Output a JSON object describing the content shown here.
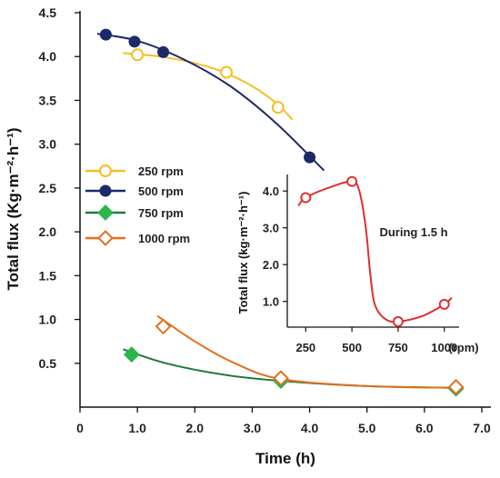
{
  "chart_data": [
    {
      "type": "line",
      "title": "",
      "xlabel": "Time (h)",
      "ylabel": "Total flux (Kg·m⁻²·h⁻¹)",
      "xlim": [
        0,
        7.0
      ],
      "ylim": [
        0,
        4.5
      ],
      "x_ticks": [
        "0",
        "1.0",
        "2.0",
        "3.0",
        "4.0",
        "5.0",
        "6.0",
        "7.0"
      ],
      "y_ticks": [
        "0.5",
        "1.0",
        "1.5",
        "2.0",
        "2.5",
        "3.0",
        "3.5",
        "4.0",
        "4.5"
      ],
      "grid": false,
      "legend_position": "left-middle",
      "series": [
        {
          "name": "250 rpm",
          "color": "#f4c020",
          "marker": "open-circle",
          "points": [
            [
              1.0,
              4.02
            ],
            [
              2.55,
              3.82
            ],
            [
              3.45,
              3.42
            ]
          ],
          "fit": [
            [
              0.75,
              4.04
            ],
            [
              1.5,
              3.99
            ],
            [
              2.3,
              3.87
            ],
            [
              2.9,
              3.7
            ],
            [
              3.4,
              3.48
            ],
            [
              3.7,
              3.28
            ]
          ]
        },
        {
          "name": "500 rpm",
          "color": "#1b2a6b",
          "marker": "filled-circle",
          "points": [
            [
              0.45,
              4.25
            ],
            [
              0.95,
              4.17
            ],
            [
              1.45,
              4.05
            ],
            [
              4.0,
              2.85
            ]
          ],
          "fit": [
            [
              0.3,
              4.26
            ],
            [
              1.0,
              4.18
            ],
            [
              1.8,
              3.97
            ],
            [
              2.6,
              3.67
            ],
            [
              3.4,
              3.25
            ],
            [
              4.25,
              2.7
            ]
          ]
        },
        {
          "name": "750 rpm",
          "color": "#2bb54a",
          "line_color": "#1f7a3a",
          "marker": "filled-diamond",
          "points": [
            [
              0.9,
              0.6
            ],
            [
              3.5,
              0.3
            ],
            [
              6.55,
              0.21
            ]
          ],
          "fit": [
            [
              0.75,
              0.66
            ],
            [
              1.5,
              0.5
            ],
            [
              2.5,
              0.37
            ],
            [
              3.5,
              0.3
            ],
            [
              5.0,
              0.24
            ],
            [
              6.6,
              0.22
            ]
          ]
        },
        {
          "name": "1000 rpm",
          "color": "#e07020",
          "marker": "open-diamond",
          "points": [
            [
              1.45,
              0.92
            ],
            [
              3.5,
              0.33
            ],
            [
              6.55,
              0.23
            ]
          ],
          "fit": [
            [
              1.35,
              1.04
            ],
            [
              2.0,
              0.75
            ],
            [
              2.7,
              0.5
            ],
            [
              3.5,
              0.32
            ],
            [
              5.0,
              0.24
            ],
            [
              6.6,
              0.22
            ]
          ]
        }
      ]
    },
    {
      "type": "line",
      "title": "",
      "xlabel": "(rpm)",
      "ylabel": "Total flux (kg·m⁻²·h⁻¹)",
      "annotation": "During 1.5 h",
      "x_ticks": [
        "250",
        "500",
        "750",
        "1000"
      ],
      "y_ticks": [
        "1.0",
        "2.0",
        "3.0",
        "4.0"
      ],
      "xlim": [
        150,
        1080
      ],
      "ylim": [
        0.3,
        4.45
      ],
      "series": [
        {
          "color": "#e03030",
          "marker": "open-circle",
          "points": [
            [
              250,
              3.82
            ],
            [
              500,
              4.26
            ],
            [
              750,
              0.45
            ],
            [
              1000,
              0.92
            ]
          ],
          "curve": [
            [
              210,
              3.6
            ],
            [
              250,
              3.82
            ],
            [
              380,
              4.1
            ],
            [
              500,
              4.26
            ],
            [
              540,
              4.0
            ],
            [
              575,
              3.0
            ],
            [
              600,
              1.7
            ],
            [
              625,
              0.9
            ],
            [
              680,
              0.52
            ],
            [
              750,
              0.45
            ],
            [
              880,
              0.6
            ],
            [
              1000,
              0.92
            ],
            [
              1040,
              1.1
            ]
          ]
        }
      ]
    }
  ]
}
